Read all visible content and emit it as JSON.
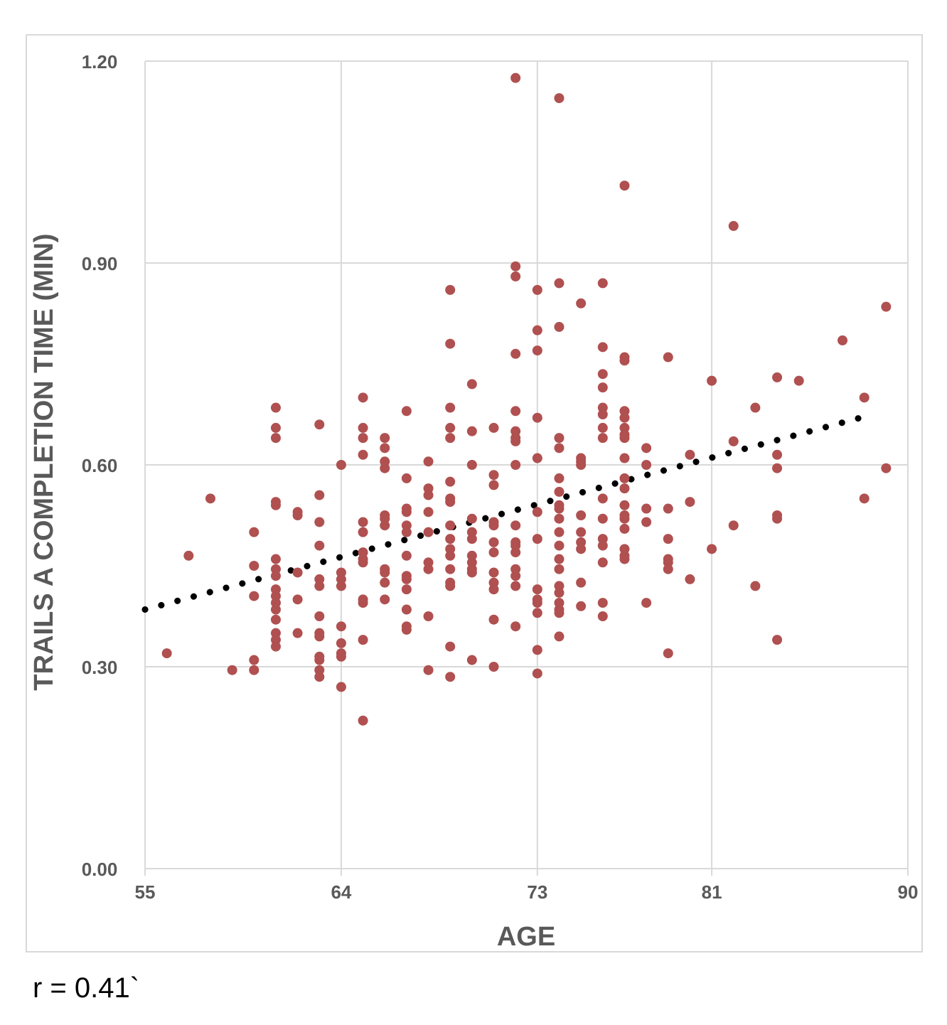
{
  "annotation": "r = 0.41`",
  "colors": {
    "points": "#b05050",
    "trendline": "#000000",
    "grid": "#d9d9d9",
    "text": "#595959"
  },
  "chart_data": {
    "type": "scatter",
    "title": "",
    "xlabel": "AGE",
    "ylabel": "TRAILS A COMPLETION TIME (MIN)",
    "xlim": [
      55,
      90
    ],
    "ylim": [
      0,
      1.2
    ],
    "xticks": [
      55,
      64,
      73,
      81,
      90
    ],
    "xtick_labels": [
      "55",
      "64",
      "73",
      "81",
      "90"
    ],
    "yticks": [
      0,
      0.3,
      0.6,
      0.9,
      1.2
    ],
    "ytick_labels": [
      "0.00",
      "0.30",
      "0.60",
      "0.90",
      "1.20"
    ],
    "grid": true,
    "legend": "none",
    "trendline": {
      "style": "dotted",
      "x": [
        55,
        88.4
      ],
      "y": [
        0.385,
        0.675
      ]
    },
    "points": [
      [
        56,
        0.32
      ],
      [
        57,
        0.465
      ],
      [
        58,
        0.55
      ],
      [
        59,
        0.295
      ],
      [
        60,
        0.5
      ],
      [
        60,
        0.45
      ],
      [
        60,
        0.405
      ],
      [
        60,
        0.31
      ],
      [
        60,
        0.295
      ],
      [
        61,
        0.685
      ],
      [
        61,
        0.655
      ],
      [
        61,
        0.64
      ],
      [
        61,
        0.545
      ],
      [
        61,
        0.54
      ],
      [
        61,
        0.46
      ],
      [
        61,
        0.445
      ],
      [
        61,
        0.435
      ],
      [
        61,
        0.415
      ],
      [
        61,
        0.405
      ],
      [
        61,
        0.395
      ],
      [
        61,
        0.385
      ],
      [
        61,
        0.37
      ],
      [
        61,
        0.35
      ],
      [
        61,
        0.34
      ],
      [
        61,
        0.33
      ],
      [
        62,
        0.53
      ],
      [
        62,
        0.525
      ],
      [
        62,
        0.44
      ],
      [
        62,
        0.4
      ],
      [
        62,
        0.35
      ],
      [
        63,
        0.66
      ],
      [
        63,
        0.555
      ],
      [
        63,
        0.515
      ],
      [
        63,
        0.48
      ],
      [
        63,
        0.43
      ],
      [
        63,
        0.42
      ],
      [
        63,
        0.375
      ],
      [
        63,
        0.35
      ],
      [
        63,
        0.345
      ],
      [
        63,
        0.315
      ],
      [
        63,
        0.31
      ],
      [
        63,
        0.295
      ],
      [
        63,
        0.285
      ],
      [
        64,
        0.6
      ],
      [
        64,
        0.44
      ],
      [
        64,
        0.43
      ],
      [
        64,
        0.42
      ],
      [
        64,
        0.36
      ],
      [
        64,
        0.335
      ],
      [
        64,
        0.32
      ],
      [
        64,
        0.315
      ],
      [
        64,
        0.27
      ],
      [
        65,
        0.7
      ],
      [
        65,
        0.655
      ],
      [
        65,
        0.64
      ],
      [
        65,
        0.615
      ],
      [
        65,
        0.515
      ],
      [
        65,
        0.5
      ],
      [
        65,
        0.47
      ],
      [
        65,
        0.46
      ],
      [
        65,
        0.455
      ],
      [
        65,
        0.4
      ],
      [
        65,
        0.395
      ],
      [
        65,
        0.34
      ],
      [
        65,
        0.22
      ],
      [
        66,
        0.64
      ],
      [
        66,
        0.625
      ],
      [
        66,
        0.605
      ],
      [
        66,
        0.595
      ],
      [
        66,
        0.525
      ],
      [
        66,
        0.52
      ],
      [
        66,
        0.51
      ],
      [
        66,
        0.445
      ],
      [
        66,
        0.44
      ],
      [
        66,
        0.425
      ],
      [
        66,
        0.4
      ],
      [
        67,
        0.68
      ],
      [
        67,
        0.58
      ],
      [
        67,
        0.535
      ],
      [
        67,
        0.53
      ],
      [
        67,
        0.51
      ],
      [
        67,
        0.5
      ],
      [
        67,
        0.465
      ],
      [
        67,
        0.435
      ],
      [
        67,
        0.43
      ],
      [
        67,
        0.415
      ],
      [
        67,
        0.385
      ],
      [
        67,
        0.36
      ],
      [
        67,
        0.355
      ],
      [
        68,
        0.605
      ],
      [
        68,
        0.565
      ],
      [
        68,
        0.555
      ],
      [
        68,
        0.53
      ],
      [
        68,
        0.5
      ],
      [
        68,
        0.455
      ],
      [
        68,
        0.445
      ],
      [
        68,
        0.375
      ],
      [
        68,
        0.295
      ],
      [
        69,
        0.86
      ],
      [
        69,
        0.78
      ],
      [
        69,
        0.685
      ],
      [
        69,
        0.655
      ],
      [
        69,
        0.64
      ],
      [
        69,
        0.575
      ],
      [
        69,
        0.55
      ],
      [
        69,
        0.545
      ],
      [
        69,
        0.51
      ],
      [
        69,
        0.49
      ],
      [
        69,
        0.475
      ],
      [
        69,
        0.465
      ],
      [
        69,
        0.445
      ],
      [
        69,
        0.425
      ],
      [
        69,
        0.42
      ],
      [
        69,
        0.33
      ],
      [
        69,
        0.285
      ],
      [
        70,
        0.72
      ],
      [
        70,
        0.65
      ],
      [
        70,
        0.6
      ],
      [
        70,
        0.52
      ],
      [
        70,
        0.5
      ],
      [
        70,
        0.49
      ],
      [
        70,
        0.465
      ],
      [
        70,
        0.455
      ],
      [
        70,
        0.445
      ],
      [
        70,
        0.44
      ],
      [
        70,
        0.31
      ],
      [
        71,
        0.655
      ],
      [
        71,
        0.585
      ],
      [
        71,
        0.57
      ],
      [
        71,
        0.515
      ],
      [
        71,
        0.51
      ],
      [
        71,
        0.485
      ],
      [
        71,
        0.47
      ],
      [
        71,
        0.44
      ],
      [
        71,
        0.425
      ],
      [
        71,
        0.415
      ],
      [
        71,
        0.37
      ],
      [
        71,
        0.3
      ],
      [
        72,
        1.175
      ],
      [
        72,
        0.895
      ],
      [
        72,
        0.88
      ],
      [
        72,
        0.765
      ],
      [
        72,
        0.68
      ],
      [
        72,
        0.65
      ],
      [
        72,
        0.64
      ],
      [
        72,
        0.635
      ],
      [
        72,
        0.6
      ],
      [
        72,
        0.51
      ],
      [
        72,
        0.485
      ],
      [
        72,
        0.48
      ],
      [
        72,
        0.47
      ],
      [
        72,
        0.445
      ],
      [
        72,
        0.435
      ],
      [
        72,
        0.42
      ],
      [
        72,
        0.36
      ],
      [
        73,
        0.86
      ],
      [
        73,
        0.8
      ],
      [
        73,
        0.77
      ],
      [
        73,
        0.67
      ],
      [
        73,
        0.61
      ],
      [
        73,
        0.53
      ],
      [
        73,
        0.49
      ],
      [
        73,
        0.415
      ],
      [
        73,
        0.4
      ],
      [
        73,
        0.395
      ],
      [
        73,
        0.38
      ],
      [
        73,
        0.325
      ],
      [
        73,
        0.29
      ],
      [
        74,
        1.145
      ],
      [
        74,
        0.87
      ],
      [
        74,
        0.805
      ],
      [
        74,
        0.64
      ],
      [
        74,
        0.625
      ],
      [
        74,
        0.58
      ],
      [
        74,
        0.56
      ],
      [
        74,
        0.54
      ],
      [
        74,
        0.535
      ],
      [
        74,
        0.52
      ],
      [
        74,
        0.5
      ],
      [
        74,
        0.48
      ],
      [
        74,
        0.46
      ],
      [
        74,
        0.445
      ],
      [
        74,
        0.42
      ],
      [
        74,
        0.41
      ],
      [
        74,
        0.395
      ],
      [
        74,
        0.385
      ],
      [
        74,
        0.38
      ],
      [
        74,
        0.345
      ],
      [
        75,
        0.84
      ],
      [
        75,
        0.61
      ],
      [
        75,
        0.605
      ],
      [
        75,
        0.6
      ],
      [
        75,
        0.525
      ],
      [
        75,
        0.5
      ],
      [
        75,
        0.485
      ],
      [
        75,
        0.475
      ],
      [
        75,
        0.425
      ],
      [
        75,
        0.39
      ],
      [
        76,
        0.87
      ],
      [
        76,
        0.775
      ],
      [
        76,
        0.735
      ],
      [
        76,
        0.715
      ],
      [
        76,
        0.685
      ],
      [
        76,
        0.675
      ],
      [
        76,
        0.655
      ],
      [
        76,
        0.64
      ],
      [
        76,
        0.55
      ],
      [
        76,
        0.52
      ],
      [
        76,
        0.49
      ],
      [
        76,
        0.48
      ],
      [
        76,
        0.455
      ],
      [
        76,
        0.395
      ],
      [
        76,
        0.375
      ],
      [
        77,
        1.015
      ],
      [
        77,
        0.76
      ],
      [
        77,
        0.755
      ],
      [
        77,
        0.68
      ],
      [
        77,
        0.67
      ],
      [
        77,
        0.655
      ],
      [
        77,
        0.645
      ],
      [
        77,
        0.64
      ],
      [
        77,
        0.61
      ],
      [
        77,
        0.58
      ],
      [
        77,
        0.565
      ],
      [
        77,
        0.54
      ],
      [
        77,
        0.525
      ],
      [
        77,
        0.52
      ],
      [
        77,
        0.505
      ],
      [
        77,
        0.475
      ],
      [
        77,
        0.465
      ],
      [
        77,
        0.46
      ],
      [
        78,
        0.625
      ],
      [
        78,
        0.6
      ],
      [
        78,
        0.535
      ],
      [
        78,
        0.515
      ],
      [
        78,
        0.395
      ],
      [
        79,
        0.76
      ],
      [
        79,
        0.535
      ],
      [
        79,
        0.49
      ],
      [
        79,
        0.46
      ],
      [
        79,
        0.455
      ],
      [
        79,
        0.445
      ],
      [
        79,
        0.32
      ],
      [
        80,
        0.615
      ],
      [
        80,
        0.545
      ],
      [
        80,
        0.43
      ],
      [
        81,
        0.725
      ],
      [
        81,
        0.475
      ],
      [
        82,
        0.955
      ],
      [
        82,
        0.635
      ],
      [
        82,
        0.51
      ],
      [
        83,
        0.685
      ],
      [
        83,
        0.42
      ],
      [
        84,
        0.73
      ],
      [
        84,
        0.615
      ],
      [
        84,
        0.595
      ],
      [
        84,
        0.525
      ],
      [
        84,
        0.52
      ],
      [
        84,
        0.34
      ],
      [
        85,
        0.725
      ],
      [
        87,
        0.785
      ],
      [
        88,
        0.7
      ],
      [
        88,
        0.55
      ],
      [
        89,
        0.835
      ],
      [
        89,
        0.595
      ]
    ]
  }
}
